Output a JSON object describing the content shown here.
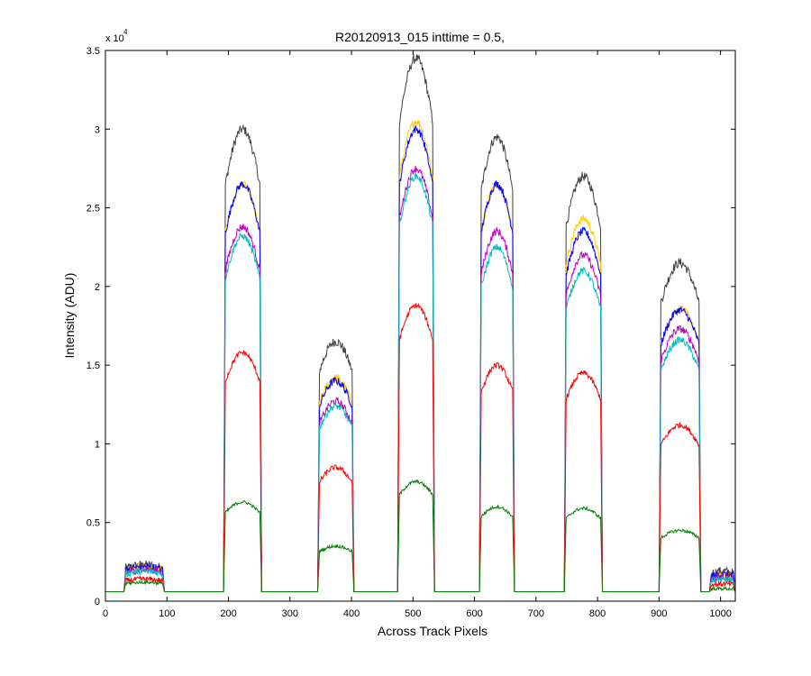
{
  "chart_data": {
    "type": "line",
    "title": "R20120913_015 inttime = 0.5,",
    "xlabel": "Across Track Pixels",
    "ylabel": "Intensity (ADU)",
    "xlim": [
      0,
      1024
    ],
    "ylim": [
      0,
      35000
    ],
    "y_multiplier": {
      "base": "x 10",
      "power": "4"
    },
    "x_ticks": [
      0,
      100,
      200,
      300,
      400,
      500,
      600,
      700,
      800,
      900,
      1000
    ],
    "x_tick_labels": [
      "0",
      "100",
      "200",
      "300",
      "400",
      "500",
      "600",
      "700",
      "800",
      "900",
      "1000"
    ],
    "y_ticks": [
      0,
      5000,
      10000,
      15000,
      20000,
      25000,
      30000,
      35000
    ],
    "y_tick_labels": [
      "0",
      "0.5",
      "1",
      "1.5",
      "2",
      "2.5",
      "3",
      "3.5"
    ],
    "grid": false,
    "legend": "none",
    "baseline": 600,
    "bands": [
      {
        "start": 30,
        "end": 96
      },
      {
        "start": 192,
        "end": 254
      },
      {
        "start": 345,
        "end": 404
      },
      {
        "start": 475,
        "end": 535
      },
      {
        "start": 608,
        "end": 665
      },
      {
        "start": 746,
        "end": 808
      },
      {
        "start": 900,
        "end": 968
      },
      {
        "start": 982,
        "end": 1024
      }
    ],
    "series": [
      {
        "color": "#404040",
        "band_peaks": [
          2300,
          30000,
          16500,
          34500,
          29500,
          27000,
          21500,
          1900
        ],
        "noise": 600
      },
      {
        "color": "#ffcc00",
        "band_peaks": [
          2200,
          26500,
          14200,
          30500,
          26500,
          24300,
          18600,
          1700
        ],
        "noise": 500
      },
      {
        "color": "#0000ff",
        "band_peaks": [
          2200,
          26500,
          14000,
          30000,
          26500,
          23500,
          18500,
          1700
        ],
        "noise": 500
      },
      {
        "color": "#bf00bf",
        "band_peaks": [
          2000,
          23800,
          12700,
          27500,
          23500,
          22000,
          17300,
          1500
        ],
        "noise": 500
      },
      {
        "color": "#00bfbf",
        "band_peaks": [
          1900,
          23200,
          12400,
          27000,
          22500,
          21000,
          16600,
          1400
        ],
        "noise": 450
      },
      {
        "color": "#ff0000",
        "band_peaks": [
          1400,
          15800,
          8500,
          18800,
          15000,
          14500,
          11200,
          1100
        ],
        "noise": 350
      },
      {
        "color": "#008000",
        "band_peaks": [
          1200,
          6300,
          3500,
          7600,
          6000,
          5900,
          4500,
          800
        ],
        "noise": 200
      }
    ]
  }
}
